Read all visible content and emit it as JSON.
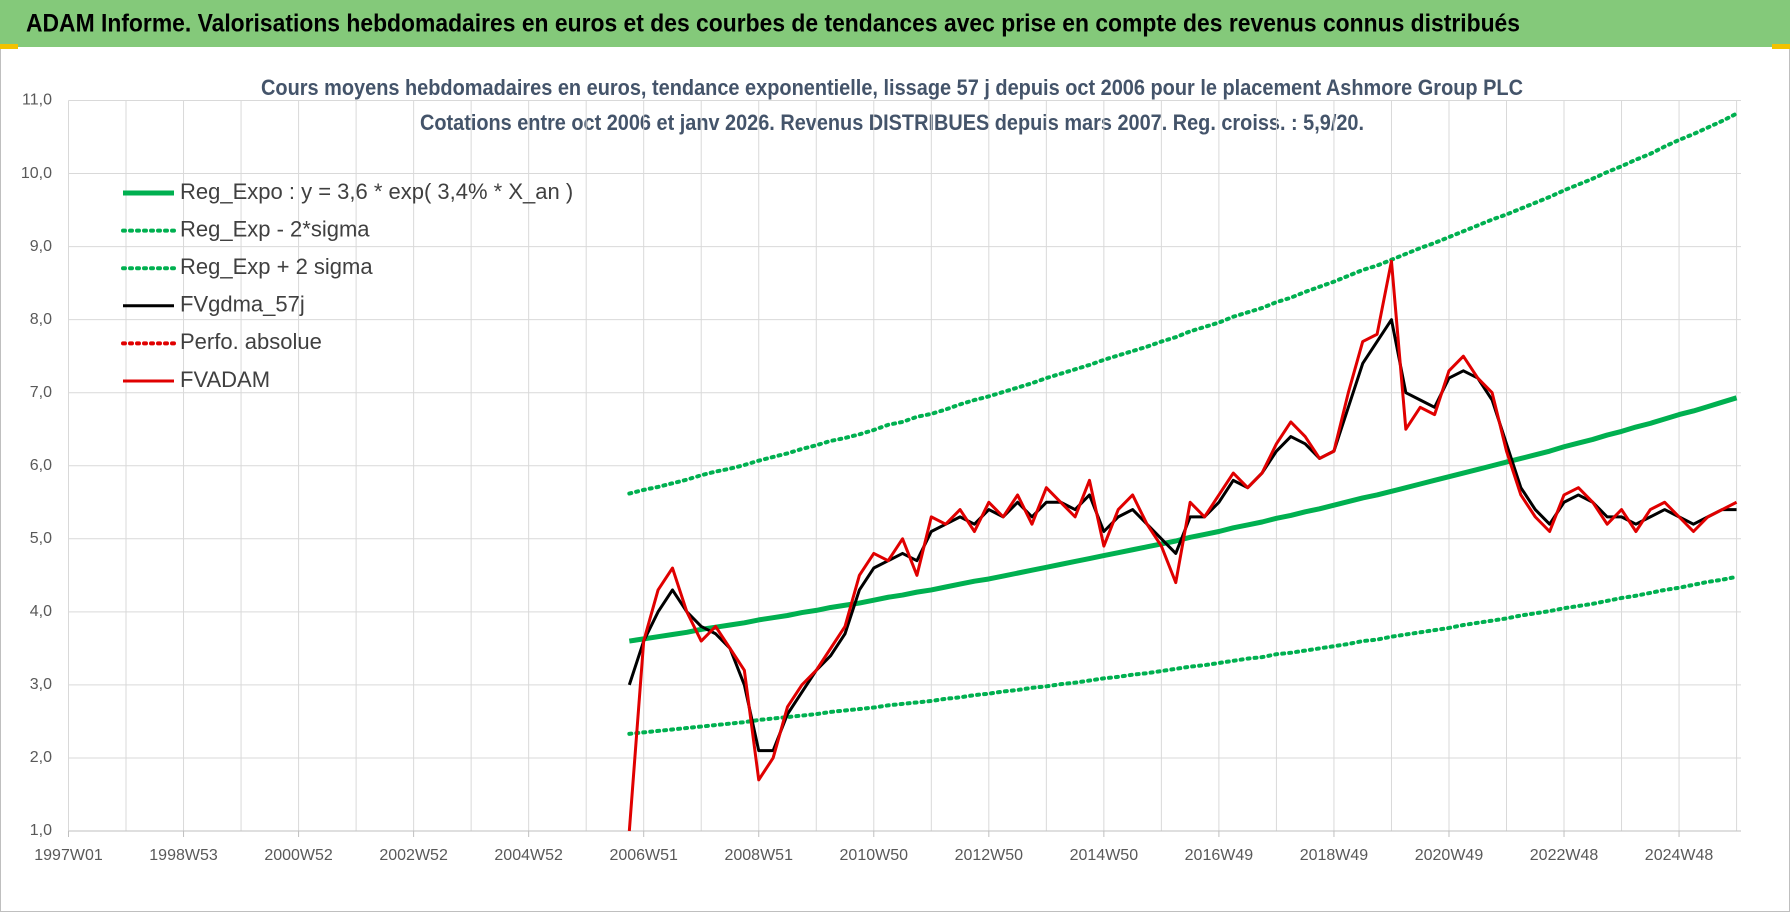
{
  "header": {
    "title": "ADAM Informe. Valorisations hebdomadaires en euros et des courbes de tendances avec prise en compte des revenus connus distribués"
  },
  "chart_data": {
    "type": "line",
    "title": "Cours moyens hebdomadaires en euros, tendance exponentielle, lissage 57 j depuis oct 2006 pour le placement Ashmore Group PLC",
    "subtitle": "Cotations entre oct 2006 et janv 2026. Revenus DISTRIBUES depuis mars 2007. Reg. croiss. : 5,9/20.",
    "categories": [
      "1997W01",
      null,
      null,
      null,
      null,
      null,
      null,
      null,
      "1998W53",
      null,
      null,
      null,
      null,
      null,
      null,
      null,
      "2000W52",
      null,
      null,
      null,
      null,
      null,
      null,
      null,
      "2002W52",
      null,
      null,
      null,
      null,
      null,
      null,
      null,
      "2004W52",
      null,
      null,
      null,
      null,
      null,
      null,
      null,
      "2006W51",
      null,
      null,
      null,
      null,
      null,
      null,
      null,
      "2008W51",
      null,
      null,
      null,
      null,
      null,
      null,
      null,
      "2010W50",
      null,
      null,
      null,
      null,
      null,
      null,
      null,
      "2012W50",
      null,
      null,
      null,
      null,
      null,
      null,
      null,
      "2014W50",
      null,
      null,
      null,
      null,
      null,
      null,
      null,
      "2016W49",
      null,
      null,
      null,
      null,
      null,
      null,
      null,
      "2018W49",
      null,
      null,
      null,
      null,
      null,
      null,
      null,
      "2020W49",
      null,
      null,
      null,
      null,
      null,
      null,
      null,
      "2022W48",
      null,
      null,
      null,
      null,
      null,
      null,
      null,
      "2024W48",
      null,
      null,
      null,
      null
    ],
    "ylim": [
      1,
      11
    ],
    "yticks": [
      {
        "value": 1,
        "label": "1,0"
      },
      {
        "value": 2,
        "label": "2,0"
      },
      {
        "value": 3,
        "label": "3,0"
      },
      {
        "value": 4,
        "label": "4,0"
      },
      {
        "value": 5,
        "label": "5,0"
      },
      {
        "value": 6,
        "label": "6,0"
      },
      {
        "value": 7,
        "label": "7,0"
      },
      {
        "value": 8,
        "label": "8,0"
      },
      {
        "value": 9,
        "label": "9,0"
      },
      {
        "value": 10,
        "label": "10,0"
      },
      {
        "value": 11,
        "label": "11,0"
      }
    ],
    "grid": true,
    "legend": "top-left",
    "series": [
      {
        "name": "Reg_Expo : y = 3,6 * exp( 3,4% *  X_an )",
        "color": "#00b050",
        "dash": "solid",
        "values": [
          null,
          null,
          null,
          null,
          null,
          null,
          null,
          null,
          null,
          null,
          null,
          null,
          null,
          null,
          null,
          null,
          null,
          null,
          null,
          null,
          null,
          null,
          null,
          null,
          null,
          null,
          null,
          null,
          null,
          null,
          null,
          null,
          null,
          null,
          null,
          null,
          null,
          null,
          null,
          3.6,
          3.63,
          3.66,
          3.69,
          3.72,
          3.76,
          3.79,
          3.82,
          3.85,
          3.89,
          3.92,
          3.95,
          3.99,
          4.02,
          4.06,
          4.09,
          4.12,
          4.16,
          4.2,
          4.23,
          4.27,
          4.3,
          4.34,
          4.38,
          4.42,
          4.45,
          4.49,
          4.53,
          4.57,
          4.61,
          4.65,
          4.69,
          4.73,
          4.77,
          4.81,
          4.85,
          4.89,
          4.93,
          4.97,
          5.02,
          5.06,
          5.1,
          5.15,
          5.19,
          5.23,
          5.28,
          5.32,
          5.37,
          5.41,
          5.46,
          5.51,
          5.56,
          5.6,
          5.65,
          5.7,
          5.75,
          5.8,
          5.85,
          5.9,
          5.95,
          6.0,
          6.05,
          6.1,
          6.15,
          6.2,
          6.26,
          6.31,
          6.36,
          6.42,
          6.47,
          6.53,
          6.58,
          6.64,
          6.7,
          6.75,
          6.81,
          6.87,
          6.93
        ]
      },
      {
        "name": "Reg_Exp - 2*sigma",
        "color": "#00b050",
        "dash": "dotted",
        "values": [
          null,
          null,
          null,
          null,
          null,
          null,
          null,
          null,
          null,
          null,
          null,
          null,
          null,
          null,
          null,
          null,
          null,
          null,
          null,
          null,
          null,
          null,
          null,
          null,
          null,
          null,
          null,
          null,
          null,
          null,
          null,
          null,
          null,
          null,
          null,
          null,
          null,
          null,
          null,
          2.33,
          2.35,
          2.37,
          2.39,
          2.41,
          2.43,
          2.45,
          2.47,
          2.49,
          2.52,
          2.54,
          2.56,
          2.58,
          2.6,
          2.63,
          2.65,
          2.67,
          2.69,
          2.72,
          2.74,
          2.76,
          2.78,
          2.81,
          2.83,
          2.86,
          2.88,
          2.91,
          2.93,
          2.96,
          2.98,
          3.01,
          3.03,
          3.06,
          3.09,
          3.11,
          3.14,
          3.16,
          3.19,
          3.22,
          3.25,
          3.27,
          3.3,
          3.33,
          3.36,
          3.38,
          3.42,
          3.44,
          3.47,
          3.5,
          3.53,
          3.56,
          3.6,
          3.62,
          3.66,
          3.69,
          3.72,
          3.75,
          3.78,
          3.82,
          3.85,
          3.88,
          3.91,
          3.95,
          3.98,
          4.01,
          4.05,
          4.08,
          4.11,
          4.15,
          4.19,
          4.22,
          4.26,
          4.3,
          4.33,
          4.37,
          4.41,
          4.44,
          4.48
        ]
      },
      {
        "name": "Reg_Exp + 2 sigma",
        "color": "#00b050",
        "dash": "dotted",
        "values": [
          null,
          null,
          null,
          null,
          null,
          null,
          null,
          null,
          null,
          null,
          null,
          null,
          null,
          null,
          null,
          null,
          null,
          null,
          null,
          null,
          null,
          null,
          null,
          null,
          null,
          null,
          null,
          null,
          null,
          null,
          null,
          null,
          null,
          null,
          null,
          null,
          null,
          null,
          null,
          5.62,
          5.67,
          5.71,
          5.76,
          5.81,
          5.87,
          5.92,
          5.96,
          6.01,
          6.07,
          6.12,
          6.17,
          6.23,
          6.28,
          6.34,
          6.38,
          6.43,
          6.49,
          6.56,
          6.6,
          6.67,
          6.71,
          6.77,
          6.84,
          6.9,
          6.95,
          7.01,
          7.07,
          7.13,
          7.2,
          7.26,
          7.32,
          7.38,
          7.45,
          7.51,
          7.57,
          7.63,
          7.7,
          7.76,
          7.84,
          7.9,
          7.96,
          8.04,
          8.1,
          8.16,
          8.24,
          8.3,
          8.38,
          8.45,
          8.52,
          8.6,
          8.68,
          8.74,
          8.82,
          8.9,
          8.98,
          9.05,
          9.13,
          9.21,
          9.29,
          9.37,
          9.44,
          9.52,
          9.6,
          9.68,
          9.77,
          9.85,
          9.93,
          10.02,
          10.1,
          10.19,
          10.27,
          10.37,
          10.46,
          10.54,
          10.63,
          10.72,
          10.82
        ]
      },
      {
        "name": "FVgdma_57j",
        "color": "#000000",
        "dash": "solid",
        "values": [
          null,
          null,
          null,
          null,
          null,
          null,
          null,
          null,
          null,
          null,
          null,
          null,
          null,
          null,
          null,
          null,
          null,
          null,
          null,
          null,
          null,
          null,
          null,
          null,
          null,
          null,
          null,
          null,
          null,
          null,
          null,
          null,
          null,
          null,
          null,
          null,
          null,
          null,
          null,
          3.0,
          3.6,
          4.0,
          4.3,
          4.0,
          3.8,
          3.7,
          3.5,
          3.0,
          2.1,
          2.1,
          2.6,
          2.9,
          3.2,
          3.4,
          3.7,
          4.3,
          4.6,
          4.7,
          4.8,
          4.7,
          5.1,
          5.2,
          5.3,
          5.2,
          5.4,
          5.3,
          5.5,
          5.3,
          5.5,
          5.5,
          5.4,
          5.6,
          5.1,
          5.3,
          5.4,
          5.2,
          5.0,
          4.8,
          5.3,
          5.3,
          5.5,
          5.8,
          5.7,
          5.9,
          6.2,
          6.4,
          6.3,
          6.1,
          6.2,
          6.8,
          7.4,
          7.7,
          8.0,
          7.0,
          6.9,
          6.8,
          7.2,
          7.3,
          7.2,
          6.9,
          6.3,
          5.7,
          5.4,
          5.2,
          5.5,
          5.6,
          5.5,
          5.3,
          5.3,
          5.2,
          5.3,
          5.4,
          5.3,
          5.2,
          5.3,
          5.4,
          5.4
        ]
      },
      {
        "name": "Perfo. absolue",
        "color": "#e00000",
        "dash": "dotted",
        "values": [
          null,
          null,
          null,
          null,
          null,
          null,
          null,
          null,
          null,
          null,
          null,
          null,
          null,
          null,
          null,
          null,
          null,
          null,
          null,
          null,
          null,
          null,
          null,
          null,
          null,
          null,
          null,
          null,
          null,
          null,
          null,
          null,
          null,
          null,
          null,
          null,
          null,
          null,
          null,
          null,
          null,
          null,
          null,
          null,
          null,
          null,
          null,
          null,
          null,
          null,
          null,
          null,
          null,
          null,
          null,
          null,
          null,
          null,
          null,
          null,
          null,
          null,
          null,
          null,
          null,
          null,
          null,
          null,
          null,
          null,
          null,
          null,
          null,
          null,
          null,
          null,
          null,
          null,
          null,
          null,
          null,
          null,
          null,
          null,
          null,
          null,
          null,
          null,
          null,
          null,
          null,
          null,
          null,
          null,
          null,
          null,
          null,
          null,
          null,
          null,
          null,
          null,
          null,
          null,
          null,
          null,
          null,
          null,
          null,
          null,
          null,
          null,
          null,
          null,
          null,
          null,
          null
        ]
      },
      {
        "name": "FVADAM",
        "color": "#e00000",
        "dash": "solid",
        "values": [
          null,
          null,
          null,
          null,
          null,
          null,
          null,
          null,
          null,
          null,
          null,
          null,
          null,
          null,
          null,
          null,
          null,
          null,
          null,
          null,
          null,
          null,
          null,
          null,
          null,
          null,
          null,
          null,
          null,
          null,
          null,
          null,
          null,
          null,
          null,
          null,
          null,
          null,
          null,
          1.0,
          3.6,
          4.3,
          4.6,
          4.0,
          3.6,
          3.8,
          3.5,
          3.2,
          1.7,
          2.0,
          2.7,
          3.0,
          3.2,
          3.5,
          3.8,
          4.5,
          4.8,
          4.7,
          5.0,
          4.5,
          5.3,
          5.2,
          5.4,
          5.1,
          5.5,
          5.3,
          5.6,
          5.2,
          5.7,
          5.5,
          5.3,
          5.8,
          4.9,
          5.4,
          5.6,
          5.2,
          4.9,
          4.4,
          5.5,
          5.3,
          5.6,
          5.9,
          5.7,
          5.9,
          6.3,
          6.6,
          6.4,
          6.1,
          6.2,
          7.0,
          7.7,
          7.8,
          8.8,
          6.5,
          6.8,
          6.7,
          7.3,
          7.5,
          7.2,
          7.0,
          6.2,
          5.6,
          5.3,
          5.1,
          5.6,
          5.7,
          5.5,
          5.2,
          5.4,
          5.1,
          5.4,
          5.5,
          5.3,
          5.1,
          5.3,
          5.4,
          5.5
        ]
      }
    ]
  }
}
